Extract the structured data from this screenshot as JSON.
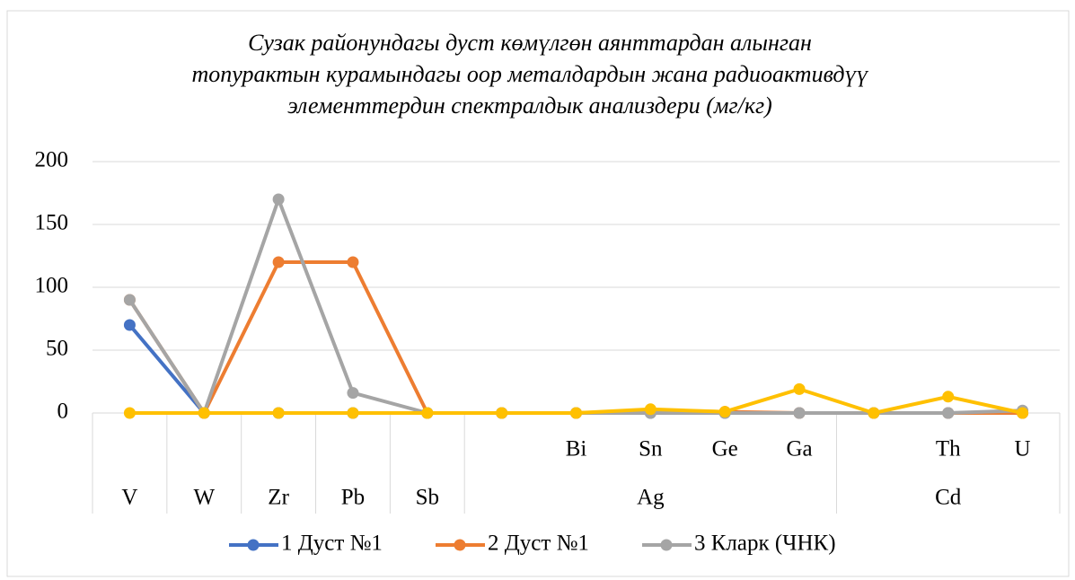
{
  "chart_data": {
    "type": "line",
    "title": [
      "Сузак районундагы дуст көмүлгөн  аянттардан алынган",
      "топурактын курамындагы оор металдардын жана радиоактивдүү",
      "элементтердин спектралдык анализдери (мг/кг)"
    ],
    "categories": [
      null,
      null,
      null,
      null,
      null,
      null,
      "Bi",
      "Sn",
      "Ge",
      "Ga",
      null,
      "Th",
      "U"
    ],
    "category_groups": [
      {
        "label": "V",
        "span": 1
      },
      {
        "label": "W",
        "span": 1
      },
      {
        "label": "Zr",
        "span": 1
      },
      {
        "label": "Pb",
        "span": 1
      },
      {
        "label": "Sb",
        "span": 1
      },
      {
        "label": "Ag",
        "span": 5
      },
      {
        "label": "Cd",
        "span": 3
      }
    ],
    "series": [
      {
        "name": "1 Дуст №1",
        "color": "#4472c4",
        "values": [
          70,
          0,
          0,
          0,
          0,
          0,
          0,
          0,
          0,
          0,
          0,
          0,
          0
        ]
      },
      {
        "name": "2 Дуст №1",
        "color": "#ed7d31",
        "values": [
          90,
          0,
          120,
          120,
          0,
          0,
          0,
          2,
          1,
          0,
          0,
          0,
          0
        ]
      },
      {
        "name": "3 Кларк (ЧНК)",
        "color": "#a5a5a5",
        "values": [
          90,
          0,
          170,
          16,
          0,
          0,
          0,
          0,
          0,
          0,
          0,
          0,
          2
        ]
      },
      {
        "color": "#ffc000",
        "values": [
          0,
          0,
          0,
          0,
          0,
          0,
          0,
          3,
          1,
          19,
          0,
          13,
          0
        ]
      }
    ],
    "ylim": [
      0,
      200
    ],
    "yticks": [
      0,
      50,
      100,
      150,
      200
    ],
    "grid": true,
    "legend": "bottom"
  }
}
